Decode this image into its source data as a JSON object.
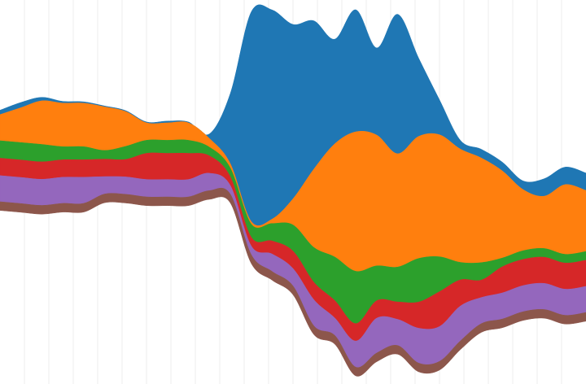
{
  "chart_data": {
    "type": "area",
    "stacked": true,
    "offset": "wiggle",
    "curve": "smooth",
    "grid": true,
    "xlim": [
      0,
      28
    ],
    "x": [
      0,
      1,
      2,
      3,
      4,
      5,
      6,
      7,
      8,
      9,
      10,
      11,
      12,
      13,
      14,
      15,
      16,
      17,
      18,
      19,
      20,
      21,
      22,
      23,
      24,
      25,
      26,
      27,
      28
    ],
    "series": [
      {
        "color": "#1f77b4",
        "values": [
          0.5,
          0.6,
          0.4,
          0.2,
          0.15,
          0.1,
          0.1,
          0.1,
          0.2,
          0.1,
          0.5,
          8,
          24,
          24,
          20,
          17,
          12,
          14,
          10,
          16,
          9,
          4,
          1,
          1,
          1,
          1,
          2,
          2,
          2
        ]
      },
      {
        "color": "#ff7f0e",
        "values": [
          3,
          4,
          5,
          5,
          5,
          5,
          4,
          2,
          2,
          2,
          1,
          0.5,
          0.3,
          0.5,
          3,
          9,
          13,
          16,
          15,
          13,
          14,
          14,
          13,
          12,
          10,
          7,
          6,
          8,
          7
        ]
      },
      {
        "color": "#2ca02c",
        "values": [
          2,
          2,
          2,
          1.5,
          1.5,
          1,
          1.5,
          1.5,
          1.5,
          1.5,
          1,
          1,
          1.5,
          2,
          3,
          4,
          5,
          6,
          4,
          4,
          5,
          4,
          2,
          2,
          1,
          1,
          1,
          1,
          1
        ]
      },
      {
        "color": "#d62728",
        "values": [
          2,
          2,
          2,
          2,
          2,
          2,
          2,
          3,
          3,
          3,
          2,
          1,
          1,
          1.5,
          2,
          2,
          2,
          2,
          2,
          2,
          3,
          4,
          3,
          2,
          3,
          3,
          3,
          3,
          3
        ]
      },
      {
        "color": "#9467bd",
        "values": [
          3,
          3,
          3,
          3,
          3,
          2,
          2,
          2,
          2,
          2,
          2,
          1,
          1,
          2,
          2,
          3,
          2,
          3,
          4,
          3,
          4,
          4,
          4,
          3,
          3,
          3,
          3,
          3,
          3
        ]
      },
      {
        "color": "#8c564b",
        "values": [
          1,
          1,
          1,
          1,
          1,
          1,
          1,
          1,
          1,
          1,
          1,
          1,
          1,
          1,
          1,
          1,
          1,
          1,
          1,
          1,
          1,
          1,
          1,
          1,
          1,
          1,
          1,
          1,
          1
        ]
      }
    ]
  }
}
